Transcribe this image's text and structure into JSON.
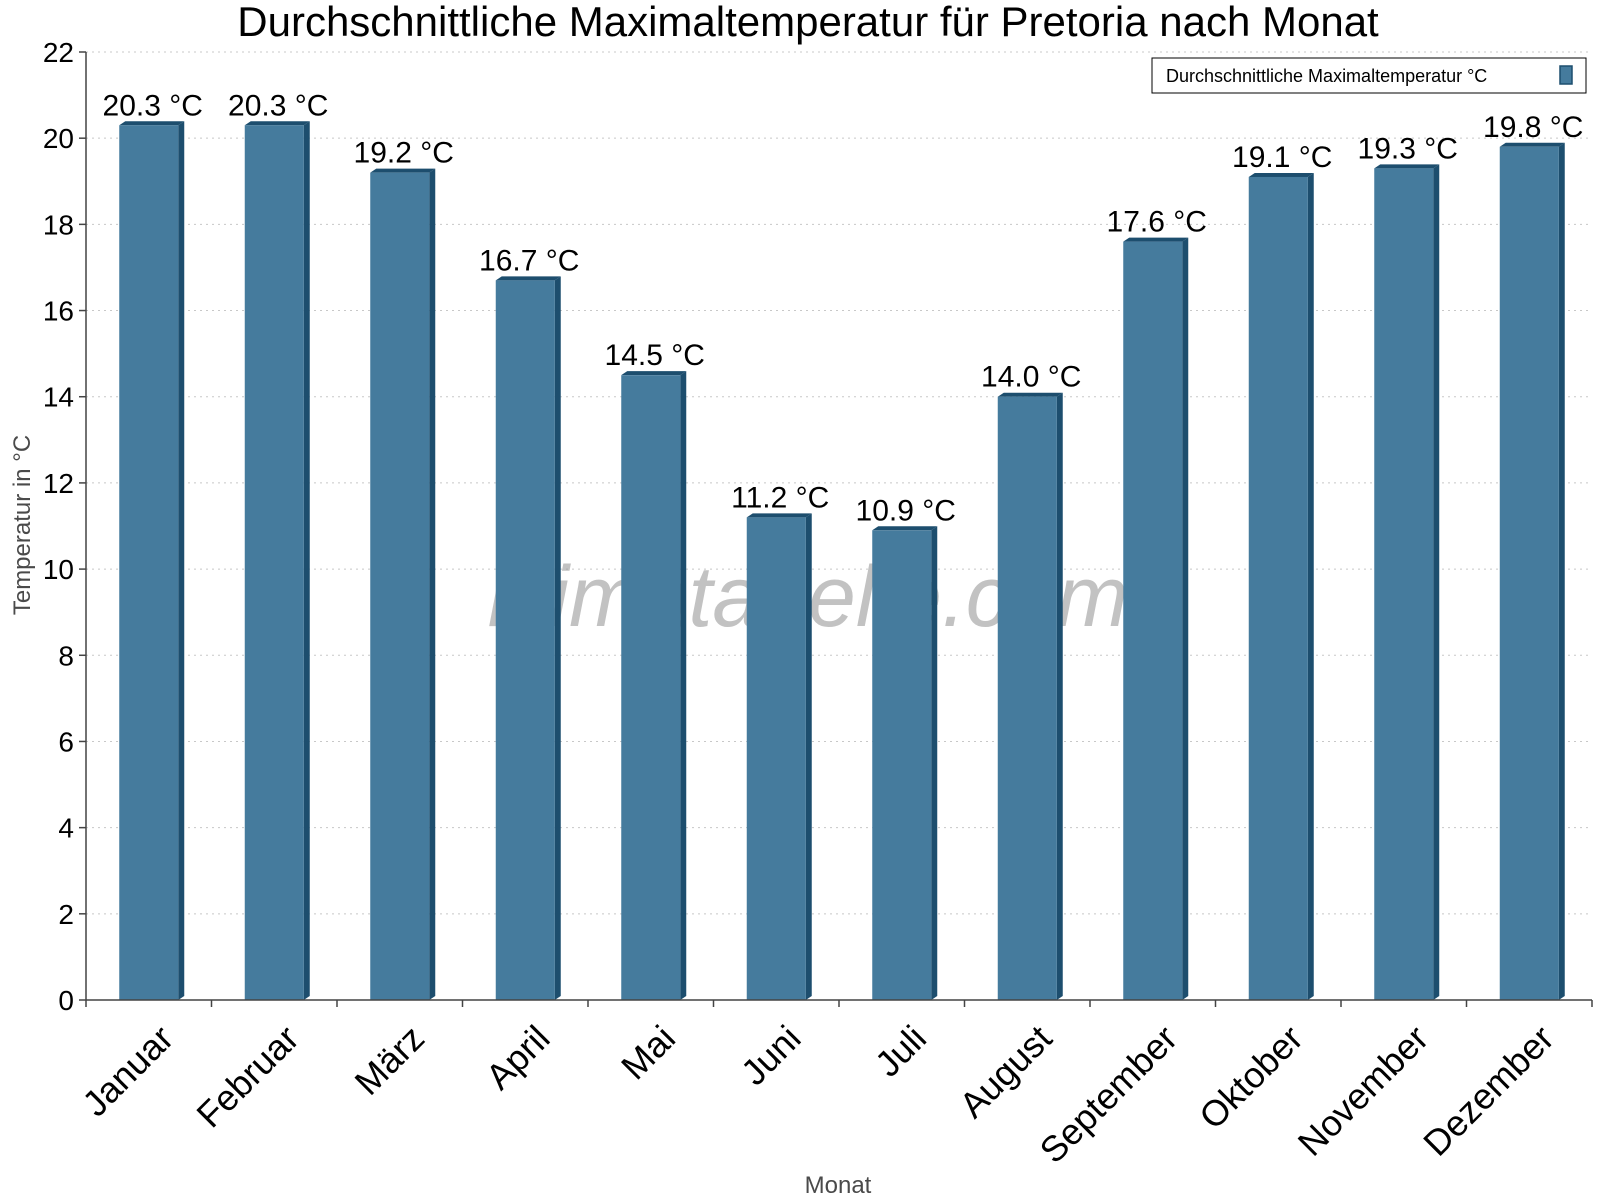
{
  "chart_data": {
    "type": "bar",
    "title": "Durchschnittliche Maximaltemperatur für Pretoria nach Monat",
    "xlabel": "Monat",
    "ylabel": "Temperatur in °C",
    "categories": [
      "Januar",
      "Februar",
      "März",
      "April",
      "Mai",
      "Juni",
      "Juli",
      "August",
      "September",
      "Oktober",
      "November",
      "Dezember"
    ],
    "series": [
      {
        "name": "Durchschnittliche Maximaltemperatur °C",
        "values": [
          20.3,
          20.3,
          19.2,
          16.7,
          14.5,
          11.2,
          10.9,
          14.0,
          17.6,
          19.1,
          19.3,
          19.8
        ],
        "data_labels": [
          "20.3 °C",
          "20.3 °C",
          "19.2 °C",
          "16.7 °C",
          "14.5 °C",
          "11.2 °C",
          "10.9 °C",
          "14.0 °C",
          "17.6 °C",
          "19.1 °C",
          "19.3 °C",
          "19.8 °C"
        ],
        "color": "#457b9d",
        "side_color": "#1d4e6e"
      }
    ],
    "ylim": [
      0,
      22
    ],
    "yticks": [
      0,
      2,
      4,
      6,
      8,
      10,
      12,
      14,
      16,
      18,
      20,
      22
    ],
    "grid": true,
    "legend_position": "top-right",
    "watermark": "klimatabelle.com"
  }
}
